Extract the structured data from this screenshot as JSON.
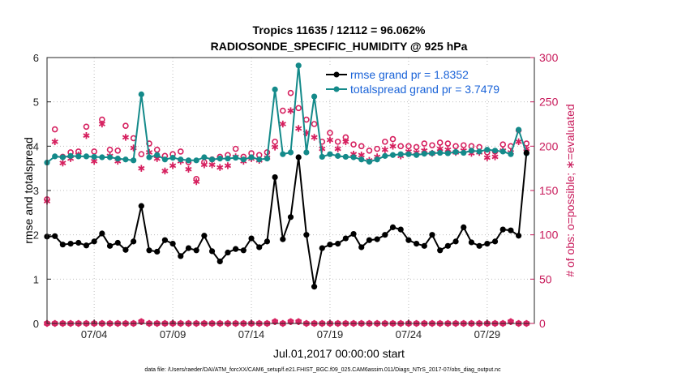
{
  "chart_data": {
    "type": "line",
    "title": "Tropics 11635 / 12112 = 96.062%",
    "subtitle": "RADIOSONDE_SPECIFIC_HUMIDITY @ 925 hPa",
    "xlabel": "Jul.01,2017 00:00:00 start",
    "ylabel_left": "rmse and totalspread",
    "ylabel_right": "# of obs: o=possible; ∗=evaluated",
    "footnote": "data file: /Users/raeder/DAI/ATM_forcXX/CAM6_setup/f.e21.FHIST_BGC.f09_025.CAM6assim.011/Diags_NTrS_2017-07/obs_diag_output.nc",
    "x_tick_labels": [
      "07/04",
      "07/09",
      "07/14",
      "07/19",
      "07/24",
      "07/29"
    ],
    "x_tick_values": [
      4,
      9,
      14,
      19,
      24,
      29
    ],
    "xlim": [
      1,
      32
    ],
    "ylim_left": [
      0,
      6
    ],
    "ylim_right": [
      0,
      300
    ],
    "y_left_ticks": [
      "0",
      "1",
      "2",
      "3",
      "4",
      "5",
      "6"
    ],
    "y_right_ticks": [
      "0",
      "50",
      "100",
      "150",
      "200",
      "250",
      "300"
    ],
    "legend": [
      {
        "label": "rmse grand pr = 1.8352",
        "color": "#000000"
      },
      {
        "label": "totalspread grand pr = 3.7479",
        "color": "#148a8a"
      }
    ],
    "x": [
      1,
      1.5,
      2,
      2.5,
      3,
      3.5,
      4,
      4.5,
      5,
      5.5,
      6,
      6.5,
      7,
      7.5,
      8,
      8.5,
      9,
      9.5,
      10,
      10.5,
      11,
      11.5,
      12,
      12.5,
      13,
      13.5,
      14,
      14.5,
      15,
      15.5,
      16,
      16.5,
      17,
      17.5,
      18,
      18.5,
      19,
      19.5,
      20,
      20.5,
      21,
      21.5,
      22,
      22.5,
      23,
      23.5,
      24,
      24.5,
      25,
      25.5,
      26,
      26.5,
      27,
      27.5,
      28,
      28.5,
      29,
      29.5,
      30,
      30.5,
      31,
      31.5
    ],
    "series": [
      {
        "name": "rmse",
        "axis": "left",
        "values": [
          1.96,
          1.97,
          1.78,
          1.8,
          1.82,
          1.76,
          1.85,
          2.03,
          1.75,
          1.82,
          1.66,
          1.85,
          2.65,
          1.65,
          1.62,
          1.88,
          1.8,
          1.52,
          1.7,
          1.65,
          1.98,
          1.63,
          1.4,
          1.6,
          1.68,
          1.65,
          1.92,
          1.72,
          1.85,
          3.3,
          1.9,
          2.4,
          3.75,
          2.0,
          0.83,
          1.7,
          1.78,
          1.8,
          1.92,
          2.02,
          1.72,
          1.88,
          1.9,
          2.0,
          2.17,
          2.12,
          1.88,
          1.8,
          1.75,
          2.0,
          1.65,
          1.75,
          1.85,
          2.17,
          1.83,
          1.75,
          1.8,
          1.85,
          2.12,
          2.1,
          1.98,
          3.85
        ]
      },
      {
        "name": "totalspread",
        "axis": "left",
        "values": [
          3.63,
          3.77,
          3.75,
          3.78,
          3.77,
          3.77,
          3.76,
          3.75,
          3.75,
          3.72,
          3.7,
          3.68,
          5.17,
          3.75,
          3.8,
          3.7,
          3.74,
          3.7,
          3.68,
          3.68,
          3.75,
          3.7,
          3.72,
          3.72,
          3.74,
          3.7,
          3.75,
          3.7,
          3.72,
          5.28,
          3.82,
          3.86,
          5.82,
          3.86,
          5.12,
          3.76,
          3.82,
          3.78,
          3.76,
          3.75,
          3.7,
          3.65,
          3.7,
          3.78,
          3.8,
          3.82,
          3.82,
          3.8,
          3.83,
          3.84,
          3.85,
          3.84,
          3.87,
          3.85,
          3.9,
          3.88,
          3.92,
          3.9,
          3.88,
          3.82,
          4.37,
          3.84
        ]
      },
      {
        "name": "possible",
        "axis": "right",
        "values": [
          140,
          219,
          188,
          193,
          194,
          222,
          194,
          230,
          196,
          195,
          223,
          209,
          191,
          203,
          196,
          189,
          191,
          194,
          182,
          163,
          182,
          185,
          188,
          190,
          197,
          188,
          192,
          190,
          193,
          205,
          240,
          260,
          243,
          230,
          225,
          205,
          215,
          205,
          210,
          202,
          200,
          195,
          197,
          205,
          208,
          200,
          200,
          199,
          203,
          201,
          204,
          203,
          200,
          201,
          200,
          199,
          193,
          194,
          202,
          200,
          218,
          203
        ]
      },
      {
        "name": "evaluated",
        "axis": "right",
        "values": [
          138,
          205,
          181,
          186,
          190,
          212,
          183,
          225,
          189,
          183,
          210,
          198,
          175,
          193,
          186,
          172,
          178,
          183,
          174,
          160,
          179,
          179,
          176,
          178,
          188,
          183,
          186,
          184,
          187,
          199,
          225,
          240,
          220,
          215,
          210,
          197,
          207,
          197,
          205,
          191,
          190,
          184,
          188,
          196,
          200,
          189,
          194,
          193,
          195,
          192,
          197,
          196,
          193,
          195,
          192,
          193,
          187,
          188,
          195,
          193,
          205,
          197
        ]
      },
      {
        "name": "possible_bottom",
        "axis": "right",
        "values": [
          0,
          0,
          0,
          0,
          0,
          0,
          0,
          0,
          0,
          0,
          0,
          0,
          2,
          0,
          0,
          0,
          0,
          0,
          0,
          0,
          0,
          0,
          0,
          0,
          0,
          0,
          0,
          0,
          0,
          2,
          0,
          2,
          2,
          0,
          0,
          0,
          0,
          0,
          0,
          0,
          0,
          0,
          0,
          0,
          0,
          0,
          0,
          0,
          0,
          0,
          0,
          0,
          0,
          0,
          0,
          0,
          0,
          0,
          0,
          2,
          0,
          0
        ]
      },
      {
        "name": "evaluated_bottom",
        "axis": "right",
        "values": [
          0,
          0,
          0,
          0,
          0,
          0,
          0,
          0,
          0,
          0,
          0,
          0,
          2,
          0,
          0,
          0,
          0,
          0,
          0,
          0,
          0,
          0,
          0,
          0,
          0,
          0,
          0,
          0,
          0,
          2,
          0,
          2,
          2,
          0,
          0,
          0,
          0,
          0,
          0,
          0,
          0,
          0,
          0,
          0,
          0,
          0,
          0,
          0,
          0,
          0,
          0,
          0,
          0,
          0,
          0,
          0,
          0,
          0,
          0,
          2,
          0,
          0
        ]
      }
    ],
    "colors": {
      "rmse": "#000000",
      "totalspread": "#148a8a",
      "obs": "#d6205f",
      "legend_text": "#1a63d8"
    }
  }
}
